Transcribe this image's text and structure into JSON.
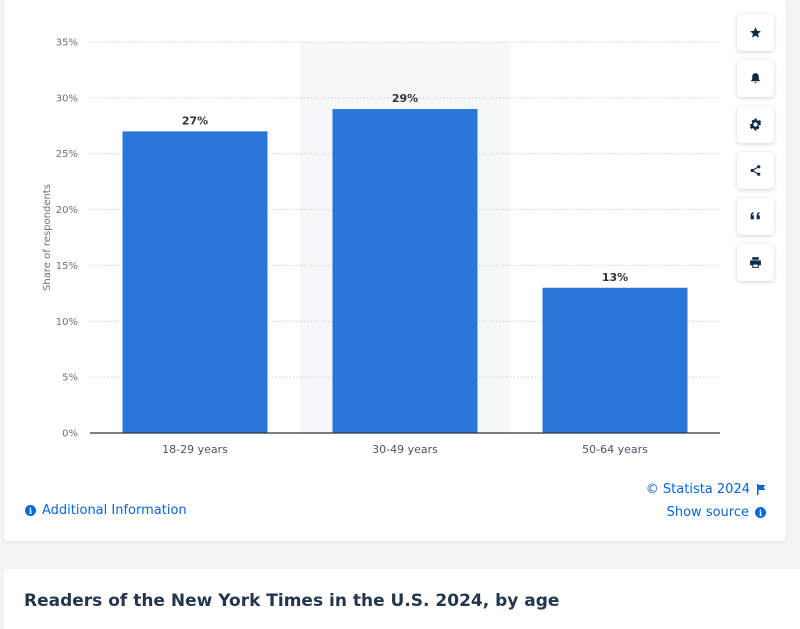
{
  "chart_data": {
    "type": "bar",
    "categories": [
      "18-29 years",
      "30-49 years",
      "50-64 years"
    ],
    "values": [
      27,
      29,
      13
    ],
    "value_labels": [
      "27%",
      "29%",
      "13%"
    ],
    "ylabel": "Share of respondents",
    "ylim": [
      0,
      35
    ],
    "yticks": [
      0,
      5,
      10,
      15,
      20,
      25,
      30,
      35
    ],
    "ytick_labels": [
      "0%",
      "5%",
      "10%",
      "15%",
      "20%",
      "25%",
      "30%",
      "35%"
    ],
    "grid": true,
    "highlighted_category": "30-49 years",
    "bar_color": "#2a77d9"
  },
  "footer": {
    "additional_info": "Additional Information",
    "copyright": "© Statista 2024",
    "show_source": "Show source"
  },
  "title": "Readers of the New York Times in the U.S. 2024, by age",
  "toolbar": {
    "icons": [
      "star-icon",
      "bell-icon",
      "gear-icon",
      "share-icon",
      "quote-icon",
      "print-icon"
    ]
  },
  "colors": {
    "accent": "#0666e0",
    "bar": "#2a77d9",
    "title": "#24364d"
  }
}
